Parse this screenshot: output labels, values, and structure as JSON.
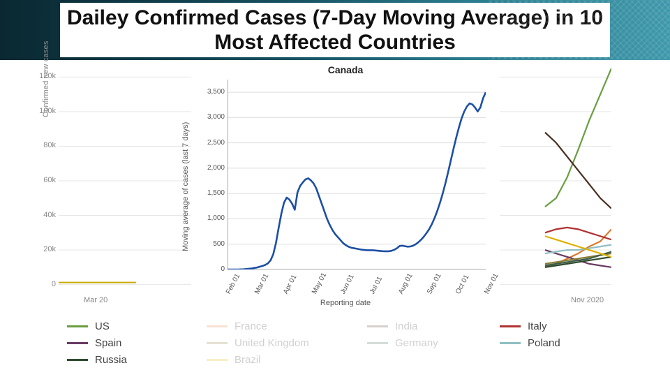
{
  "title": "Dailey Confirmed Cases (7-Day Moving Average) in 10 Most Affected Countries",
  "background_chart": {
    "type": "line",
    "ylabel": "Confirmed new cases",
    "ylim": [
      -5000,
      125000
    ],
    "yticks": [
      0,
      20000,
      40000,
      60000,
      80000,
      100000,
      120000
    ],
    "ytick_labels": [
      "0",
      "20k",
      "40k",
      "60k",
      "80k",
      "100k",
      "120k"
    ],
    "xticks": [
      "Mar 20",
      "Nov 2020"
    ],
    "xtick_positions": [
      0.04,
      0.95
    ],
    "visible_right_x": [
      0.88,
      0.9,
      0.92,
      0.94,
      0.96,
      0.98,
      1.0
    ],
    "series": {
      "US": {
        "color": "#6a9e3f",
        "values": [
          45000,
          50000,
          62000,
          78000,
          95000,
          110000,
          125000
        ]
      },
      "France": {
        "color": "#d97b2d",
        "values": [
          10000,
          12000,
          15000,
          18000,
          22000,
          25000,
          32000
        ]
      },
      "India": {
        "color": "#4a2e20",
        "values": [
          88000,
          82000,
          74000,
          66000,
          58000,
          50000,
          44000
        ]
      },
      "Italy": {
        "color": "#b03030",
        "values": [
          30000,
          32000,
          33000,
          32000,
          30000,
          28000,
          26000
        ]
      },
      "Spain": {
        "color": "#6a3b63",
        "values": [
          20000,
          18000,
          16000,
          14000,
          12000,
          11000,
          10000
        ]
      },
      "UK": {
        "color": "#8a7a36",
        "values": [
          12000,
          13000,
          14000,
          15000,
          16000,
          17000,
          18000
        ]
      },
      "Germany": {
        "color": "#3a5f4a",
        "values": [
          11000,
          12000,
          13000,
          14000,
          15000,
          17000,
          19000
        ]
      },
      "Poland": {
        "color": "#8fbfc4",
        "values": [
          18000,
          19000,
          20000,
          20000,
          21000,
          22000,
          23000
        ]
      },
      "Russia": {
        "color": "#2e4a2e",
        "values": [
          10000,
          11000,
          12000,
          13000,
          14000,
          15000,
          16000
        ]
      },
      "Brazil": {
        "color": "#e0b000",
        "values": [
          28000,
          26000,
          24000,
          22000,
          20000,
          18000,
          16000
        ]
      }
    },
    "left_flat_series": {
      "color": "#c9a800",
      "y": 1200,
      "x0": 0.0,
      "x1": 0.14
    },
    "grid_color": "#e6e6e6",
    "axis_color": "#bbbbbb",
    "line_width": 2.2
  },
  "foreground_chart": {
    "type": "line",
    "title": "Canada",
    "ylabel": "Moving average of cases (last 7 days)",
    "xlabel": "Reporting date",
    "ylim": [
      0,
      3750
    ],
    "yticks": [
      0,
      500,
      1000,
      1500,
      2000,
      2500,
      3000,
      3500
    ],
    "xticks": [
      "Feb 01",
      "Mar 01",
      "Apr 01",
      "May 01",
      "Jun 01",
      "Jul 01",
      "Aug 01",
      "Sep 01",
      "Oct 01",
      "Nov 01"
    ],
    "color": "#1d4fa3",
    "line_width": 2.6,
    "grid_color": "#dddddd",
    "axis_color": "#555555",
    "values": [
      0,
      0,
      0,
      0,
      0,
      2,
      5,
      10,
      15,
      20,
      30,
      40,
      55,
      70,
      90,
      120,
      180,
      300,
      520,
      820,
      1100,
      1320,
      1420,
      1380,
      1300,
      1180,
      1520,
      1650,
      1720,
      1780,
      1800,
      1760,
      1700,
      1600,
      1450,
      1300,
      1150,
      1000,
      880,
      780,
      700,
      640,
      580,
      520,
      480,
      450,
      430,
      420,
      410,
      400,
      390,
      385,
      380,
      380,
      380,
      375,
      370,
      365,
      360,
      360,
      360,
      370,
      390,
      420,
      465,
      470,
      460,
      450,
      455,
      470,
      500,
      540,
      590,
      650,
      720,
      800,
      900,
      1020,
      1160,
      1320,
      1500,
      1700,
      1920,
      2150,
      2380,
      2600,
      2800,
      2980,
      3120,
      3220,
      3280,
      3260,
      3200,
      3120,
      3200,
      3380,
      3500
    ]
  },
  "legend": {
    "cols": [
      {
        "x": 0,
        "items": [
          {
            "label": "US",
            "color": "#6a9e3f"
          },
          {
            "label": "Spain",
            "color": "#6a3b63"
          },
          {
            "label": "Russia",
            "color": "#2e4a2e"
          }
        ]
      },
      {
        "x": 200,
        "faded": true,
        "items": [
          {
            "label": "France",
            "color": "#d97b2d"
          },
          {
            "label": "United Kingdom",
            "color": "#8a7a36"
          },
          {
            "label": "Brazil",
            "color": "#e0b000"
          }
        ]
      },
      {
        "x": 430,
        "faded": true,
        "items": [
          {
            "label": "India",
            "color": "#4a2e20"
          },
          {
            "label": "Germany",
            "color": "#3a5f4a"
          }
        ]
      },
      {
        "x": 620,
        "items": [
          {
            "label": "Italy",
            "color": "#b03030"
          },
          {
            "label": "Poland",
            "color": "#8fbfc4"
          }
        ]
      }
    ]
  }
}
